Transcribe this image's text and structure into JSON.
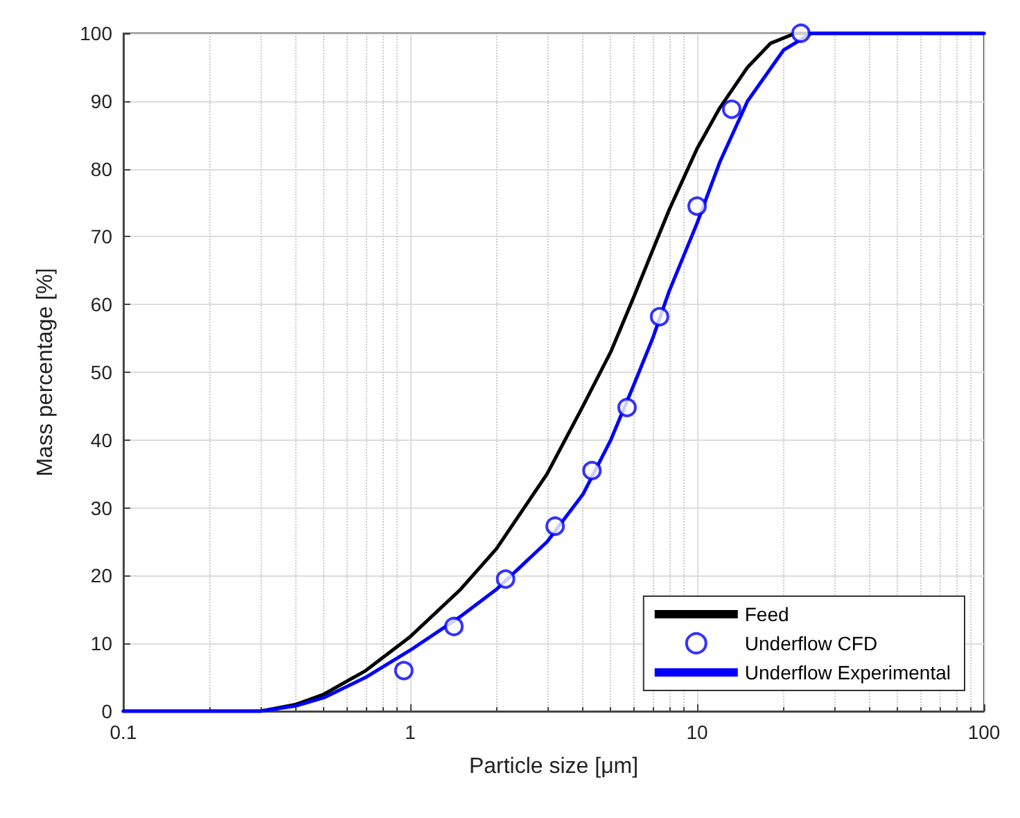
{
  "chart_data": {
    "type": "line",
    "xlabel": "Particle size [μm]",
    "ylabel": "Mass percentage [%]",
    "log": "x",
    "xlim": [
      0.1,
      100
    ],
    "xticks": [
      0.1,
      1,
      10,
      100
    ],
    "ylim": [
      0,
      100
    ],
    "yticks": [
      0,
      10,
      20,
      30,
      40,
      50,
      60,
      70,
      80,
      90,
      100
    ],
    "grid": true,
    "legend": "bottom right",
    "series": [
      {
        "name": "Feed",
        "color": "#000000",
        "marker": "none",
        "line_style": "solid",
        "x": [
          0.1,
          0.2,
          0.3,
          0.4,
          0.5,
          0.7,
          1,
          1.5,
          2,
          3,
          4,
          5,
          6,
          7,
          8,
          10,
          12,
          15,
          18,
          22,
          30,
          50,
          100
        ],
        "values": [
          0,
          0,
          0,
          1,
          2.5,
          6,
          11,
          18,
          24,
          35,
          45,
          53,
          61,
          68,
          74,
          83,
          89,
          95,
          98.5,
          100,
          100,
          100,
          100
        ]
      },
      {
        "name": "Underflow CFD",
        "color": "#0000ff",
        "type": "scatter",
        "marker": "circle",
        "x": [
          0.95,
          1.42,
          2.15,
          3.2,
          4.3,
          5.7,
          7.4,
          10,
          13.2,
          23
        ],
        "values": [
          6,
          12.5,
          19.5,
          27.3,
          35.5,
          44.8,
          58.2,
          74.5,
          88.8,
          100
        ]
      },
      {
        "name": "Underflow Experimental",
        "color": "#0000ff",
        "marker": "none",
        "line_style": "solid",
        "x": [
          0.1,
          0.2,
          0.3,
          0.4,
          0.5,
          0.7,
          1,
          1.5,
          2,
          3,
          4,
          5,
          6,
          7,
          8,
          10,
          12,
          15,
          20,
          25,
          30,
          50,
          100
        ],
        "values": [
          0,
          0,
          0,
          0.8,
          2,
          5,
          9,
          14,
          18,
          25,
          32,
          40,
          48,
          55,
          62,
          72,
          81,
          90,
          97.5,
          100,
          100,
          100,
          100
        ]
      }
    ]
  }
}
